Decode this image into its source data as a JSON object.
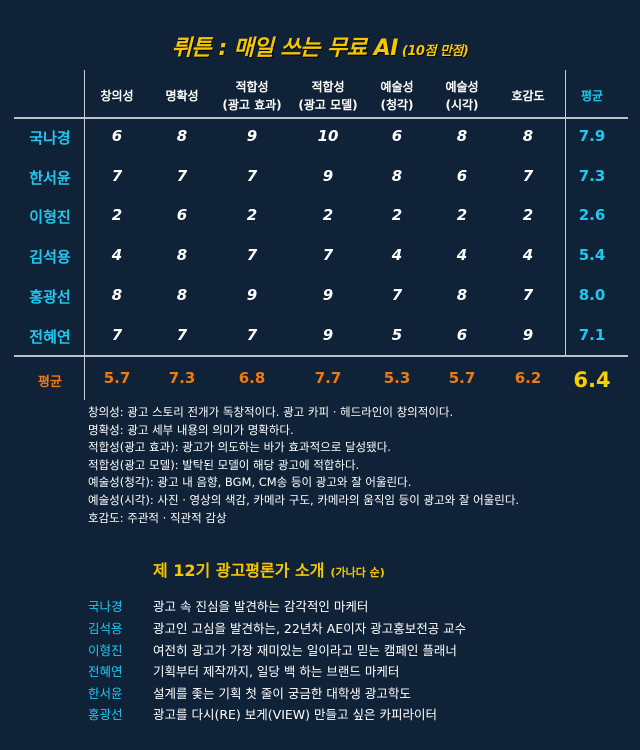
{
  "title": {
    "main": "뤼튼 : 매일 쓰는 무료 AI",
    "sub": "(10점 만점)"
  },
  "colors": {
    "background": "#0f2238",
    "title": "#f7c600",
    "name": "#1ec8f0",
    "column_average": "#f07a10",
    "grand_average": "#f7d000"
  },
  "table": {
    "headers": [
      [
        "창의성"
      ],
      [
        "명확성"
      ],
      [
        "적합성",
        "(광고 효과)"
      ],
      [
        "적합성",
        "(광고 모델)"
      ],
      [
        "예술성",
        "(청각)"
      ],
      [
        "예술성",
        "(시각)"
      ],
      [
        "호감도"
      ]
    ],
    "avg_header": "평균",
    "rows": [
      {
        "name": "국나경",
        "scores": [
          "6",
          "8",
          "9",
          "10",
          "6",
          "8",
          "8"
        ],
        "avg": "7.9"
      },
      {
        "name": "한서윤",
        "scores": [
          "7",
          "7",
          "7",
          "9",
          "8",
          "6",
          "7"
        ],
        "avg": "7.3"
      },
      {
        "name": "이형진",
        "scores": [
          "2",
          "6",
          "2",
          "2",
          "2",
          "2",
          "2"
        ],
        "avg": "2.6"
      },
      {
        "name": "김석용",
        "scores": [
          "4",
          "8",
          "7",
          "7",
          "4",
          "4",
          "4"
        ],
        "avg": "5.4"
      },
      {
        "name": "홍광선",
        "scores": [
          "8",
          "8",
          "9",
          "9",
          "7",
          "8",
          "7"
        ],
        "avg": "8.0"
      },
      {
        "name": "전혜연",
        "scores": [
          "7",
          "7",
          "7",
          "9",
          "5",
          "6",
          "9"
        ],
        "avg": "7.1"
      }
    ],
    "avg_row": {
      "label": "평균",
      "values": [
        "5.7",
        "7.3",
        "6.8",
        "7.7",
        "5.3",
        "5.7",
        "6.2"
      ],
      "grand": "6.4"
    }
  },
  "definitions": [
    "창의성: 광고 스토리 전개가 독창적이다. 광고 카피 · 헤드라인이 창의적이다.",
    "명확성: 광고 세부 내용의 의미가 명확하다.",
    "적합성(광고 효과): 광고가 의도하는 바가 효과적으로 달성됐다.",
    "적합성(광고 모델): 발탁된 모델이 해당 광고에 적합하다.",
    "예술성(청각): 광고 내 음향, BGM, CM송 등이 광고와 잘 어울린다.",
    "예술성(시각): 사진 · 영상의 색감, 카메라 구도, 카메라의 움직임 등이 광고와 잘 어울린다.",
    "호감도: 주관적 · 직관적 감상"
  ],
  "intro": {
    "title": "제 12기 광고평론가 소개",
    "sub": "(가나다 순)",
    "items": [
      {
        "name": "국나경",
        "desc": "광고 속 진심을 발견하는 감각적인 마케터"
      },
      {
        "name": "김석용",
        "desc": "광고인 고심을 발견하는, 22년차 AE이자 광고홍보전공 교수"
      },
      {
        "name": "이형진",
        "desc": "여전히 광고가 가장 재미있는 일이라고 믿는 캠페인 플래너"
      },
      {
        "name": "전혜연",
        "desc": "기획부터 제작까지, 일당 백 하는 브랜드 마케터"
      },
      {
        "name": "한서윤",
        "desc": "설계를 좇는 기획 첫 줄이 궁금한 대학생 광고학도"
      },
      {
        "name": "홍광선",
        "desc": "광고를 다시(RE) 보게(VIEW) 만들고 싶은 카피라이터"
      }
    ]
  }
}
